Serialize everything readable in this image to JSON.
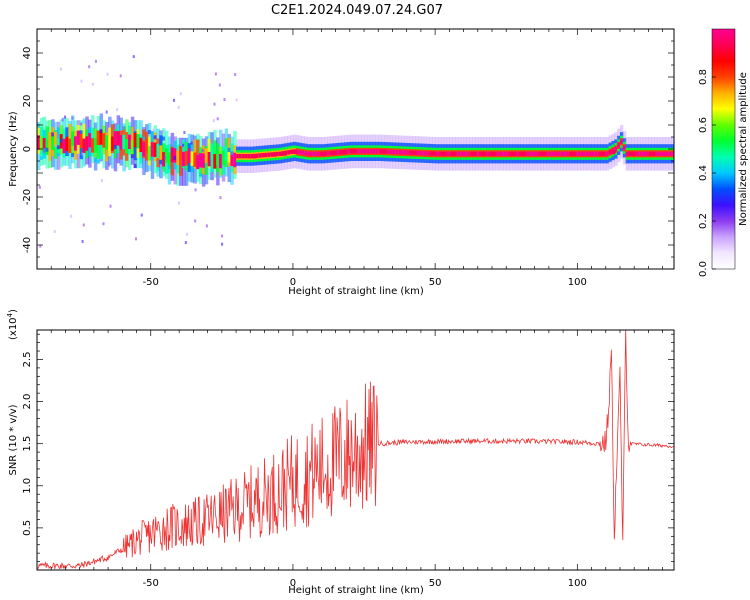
{
  "title": "C2E1.2024.049.07.24.G07",
  "colors": {
    "snr_line": "#ee3333",
    "axis": "#000000",
    "colormap": [
      "#ffffff",
      "#f2e6ff",
      "#c9a3ff",
      "#8c3cf0",
      "#3b10ff",
      "#0050ff",
      "#00c8ff",
      "#00ffb0",
      "#00ff30",
      "#60ff00",
      "#ffff00",
      "#ffb000",
      "#ff4000",
      "#ff0000",
      "#ff0055",
      "#ff0090"
    ]
  },
  "chart_data": [
    {
      "type": "heatmap",
      "name": "spectrogram",
      "xlabel": "Height of straight line (km)",
      "ylabel": "Frequency (Hz)",
      "xlim": [
        -90,
        134
      ],
      "ylim": [
        -50,
        50
      ],
      "x_ticks": [
        -50,
        0,
        50,
        100
      ],
      "y_ticks": [
        -40,
        -20,
        0,
        20,
        40
      ],
      "colorbar": {
        "label": "Normalized spectral amplitude",
        "range": [
          0,
          1
        ],
        "ticks": [
          0.0,
          0.2,
          0.4,
          0.6,
          0.8
        ],
        "tick_labels": [
          "0.0",
          "0.2",
          "0.4",
          "0.6",
          "0.8"
        ]
      },
      "ridge": {
        "description_points": [
          [
            -90,
            2
          ],
          [
            -70,
            3
          ],
          [
            -55,
            2
          ],
          [
            -45,
            -3
          ],
          [
            -35,
            -4
          ],
          [
            -25,
            -3
          ],
          [
            -15,
            -3
          ],
          [
            -5,
            -2
          ],
          [
            0,
            -1
          ],
          [
            5,
            -2
          ],
          [
            10,
            -2
          ],
          [
            20,
            -1
          ],
          [
            30,
            -1
          ],
          [
            50,
            -2
          ],
          [
            70,
            -2
          ],
          [
            90,
            -2
          ],
          [
            110,
            -2
          ],
          [
            113,
            0
          ],
          [
            115,
            3
          ],
          [
            117,
            -2
          ],
          [
            134,
            -2
          ]
        ]
      }
    },
    {
      "type": "line",
      "name": "snr",
      "xlabel": "Height of straight line (km)",
      "ylabel": "SNR (10 * v/v)",
      "scale_label": "(x10",
      "scale_exponent": "4",
      "scale_close": ")",
      "xlim": [
        -90,
        134
      ],
      "ylim": [
        0,
        2.85
      ],
      "x_ticks": [
        -50,
        0,
        50,
        100
      ],
      "y_ticks": [
        0.5,
        1.0,
        1.5,
        2.0,
        2.5
      ],
      "y_tick_labels": [
        "0.5",
        "1.0",
        "1.5",
        "2.0",
        "2.5"
      ],
      "trend": [
        [
          -90,
          0.05
        ],
        [
          -75,
          0.05
        ],
        [
          -65,
          0.15
        ],
        [
          -55,
          0.35
        ],
        [
          -45,
          0.5
        ],
        [
          -35,
          0.55
        ],
        [
          -25,
          0.65
        ],
        [
          -15,
          0.8
        ],
        [
          -5,
          0.95
        ],
        [
          0,
          1.05
        ],
        [
          10,
          1.2
        ],
        [
          20,
          1.38
        ],
        [
          30,
          1.5
        ],
        [
          40,
          1.52
        ],
        [
          60,
          1.53
        ],
        [
          80,
          1.53
        ],
        [
          100,
          1.52
        ],
        [
          108,
          1.5
        ],
        [
          110,
          1.52
        ],
        [
          111,
          1.9
        ],
        [
          112,
          2.6
        ],
        [
          113,
          0.4
        ],
        [
          114,
          1.4
        ],
        [
          115,
          2.3
        ],
        [
          116,
          0.25
        ],
        [
          117,
          2.8
        ],
        [
          118,
          1.5
        ],
        [
          134,
          1.47
        ]
      ]
    }
  ]
}
